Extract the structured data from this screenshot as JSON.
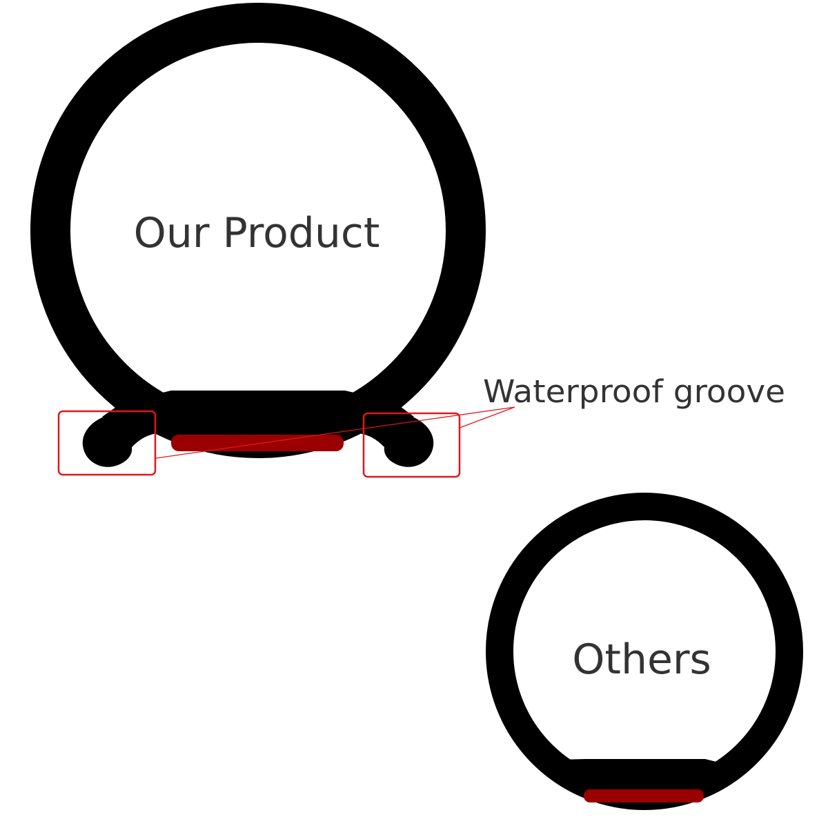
{
  "labels": {
    "our_product": "Our Product",
    "waterproof_groove": "Waterproof groove",
    "others": "Others"
  },
  "colors": {
    "background": "#ffffff",
    "seal_rubber": "#000000",
    "adhesive_tape": "#9b0000",
    "highlight_box": "#e0161b",
    "text": "#333333"
  },
  "icons": {
    "our_product_seal": "bulb-seal-with-grooves",
    "others_seal": "bulb-seal-plain",
    "adhesive_strip": "adhesive-tape"
  }
}
